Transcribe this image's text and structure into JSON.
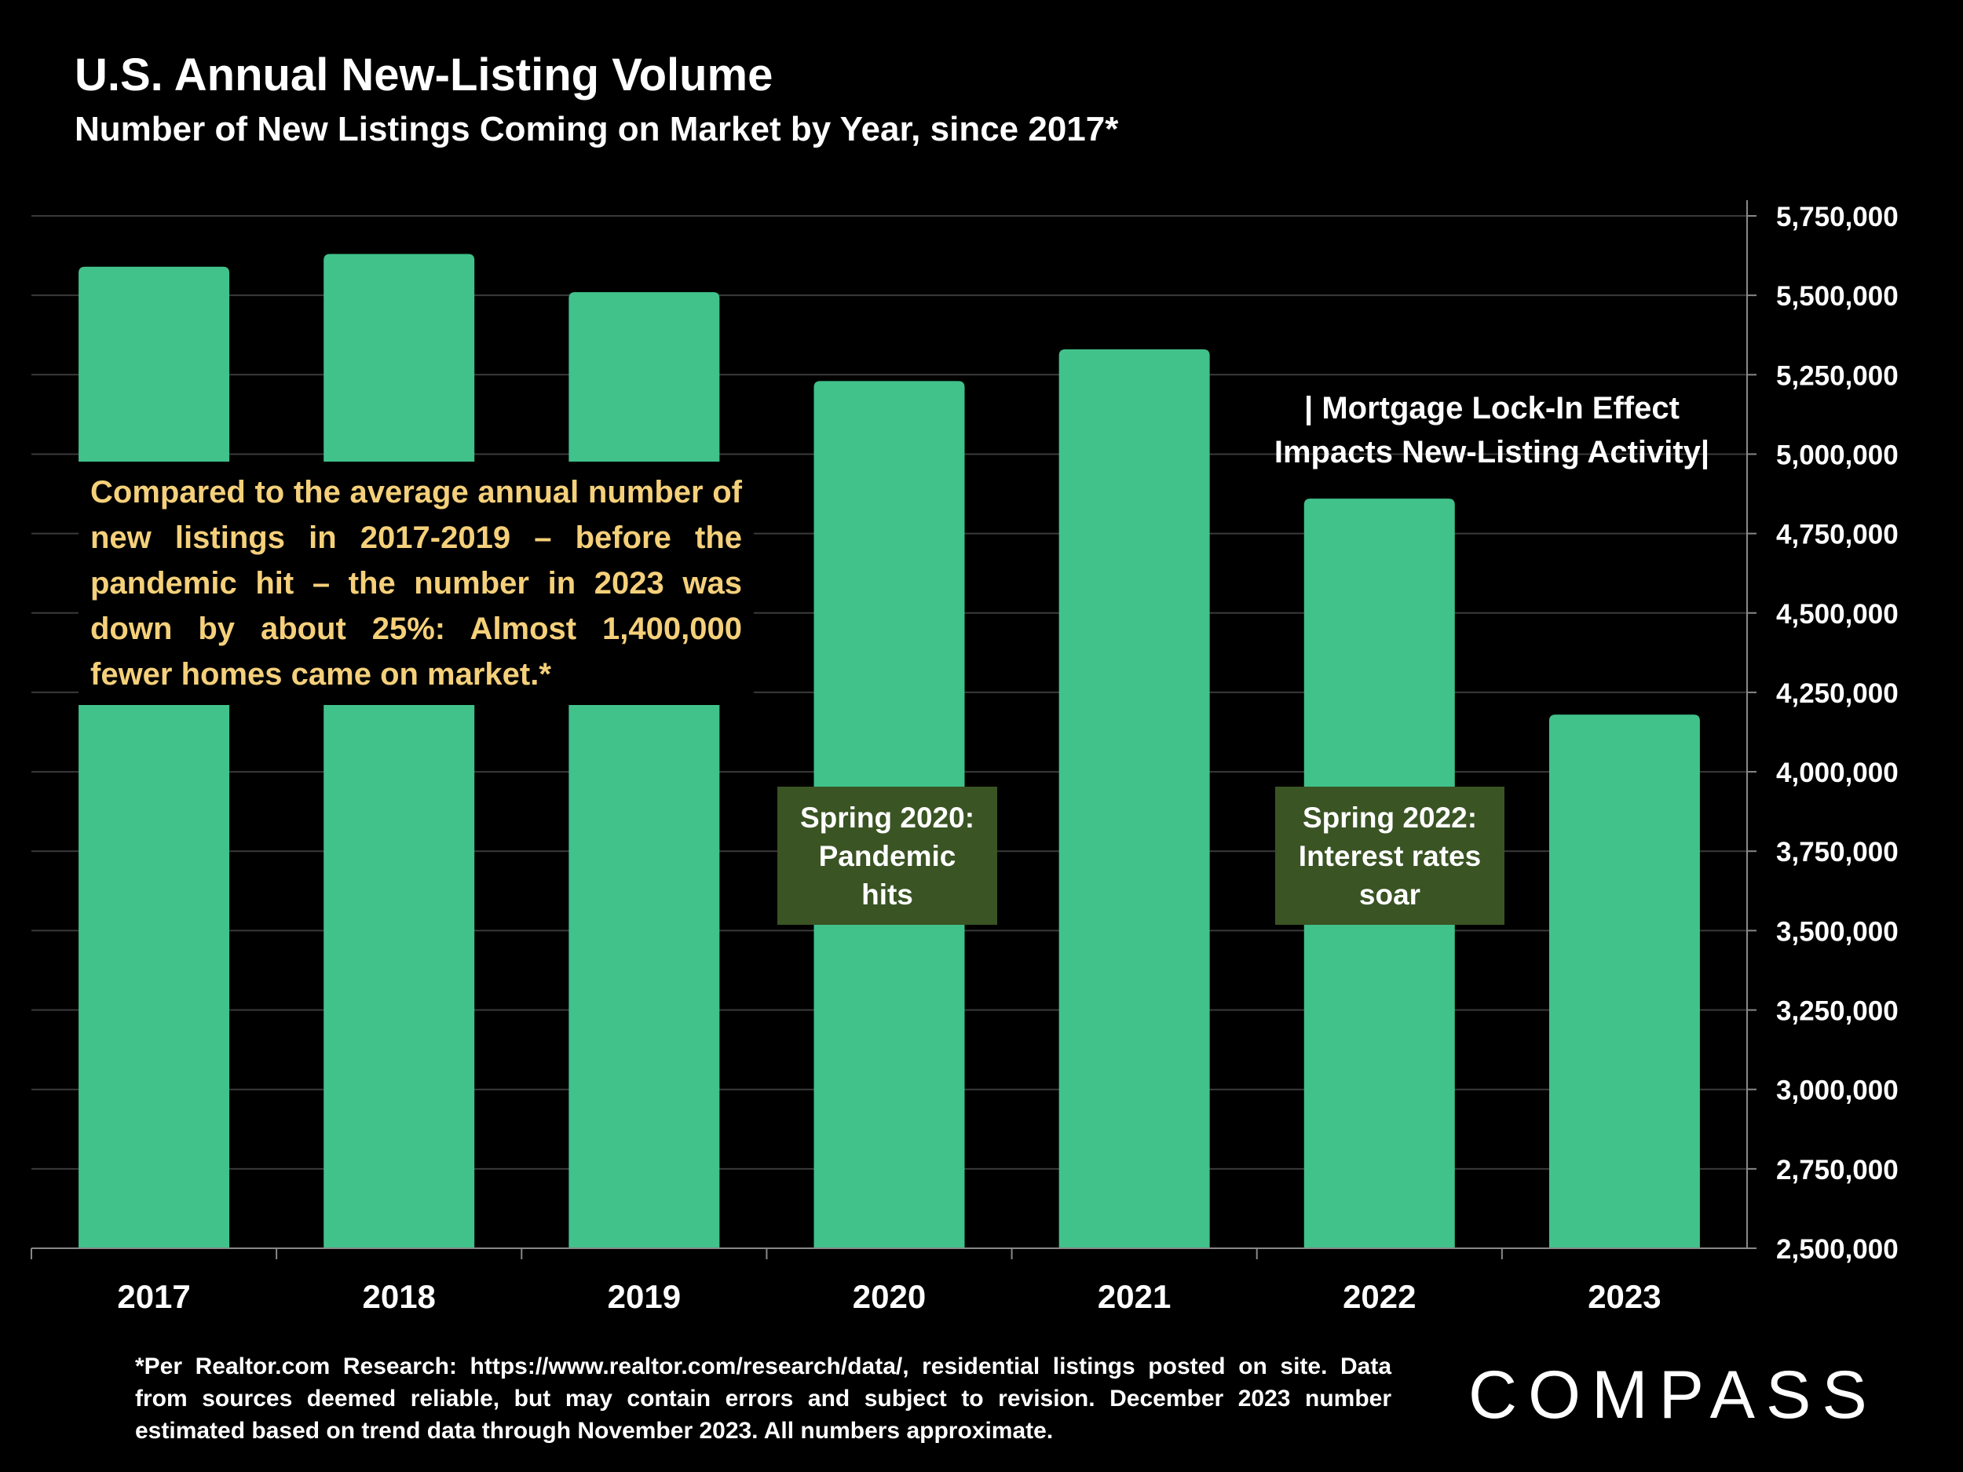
{
  "header": {
    "title": "U.S. Annual New-Listing Volume",
    "subtitle": "Number of New Listings Coming on Market by Year, since 2017*"
  },
  "chart_data": {
    "type": "bar",
    "categories": [
      "2017",
      "2018",
      "2019",
      "2020",
      "2021",
      "2022",
      "2023"
    ],
    "values": [
      5590000,
      5630000,
      5510000,
      5230000,
      5330000,
      4860000,
      4180000
    ],
    "ylim": [
      2500000,
      5750000
    ],
    "y_ticks": [
      "5,750,000",
      "5,500,000",
      "5,250,000",
      "5,000,000",
      "4,750,000",
      "4,500,000",
      "4,250,000",
      "4,000,000",
      "3,750,000",
      "3,500,000",
      "3,250,000",
      "3,000,000",
      "2,750,000",
      "2,500,000"
    ],
    "y_axis_position": "right",
    "grid": true,
    "bar_color": "#41c28b"
  },
  "annotations": {
    "callout": "Compared to the average annual number of new listings in 2017-2019 – before the pandemic hit – the number in 2023 was down by about 25%: Almost 1,400,000 fewer homes came on market.*",
    "event_2020_lines": [
      "Spring 2020:",
      "Pandemic",
      "hits"
    ],
    "event_2022_lines": [
      "Spring 2022:",
      "Interest rates",
      "soar"
    ],
    "lockin_lines": [
      "| Mortgage Lock-In Effect",
      "Impacts New-Listing Activity|"
    ]
  },
  "footer": {
    "footnote": "*Per Realtor.com Research:  https://www.realtor.com/research/data/, residential listings posted on site. Data from sources deemed reliable, but may contain errors and subject to revision. December 2023 number estimated based on trend data through November 2023. All numbers approximate.",
    "logo": "COMPASS"
  },
  "colors": {
    "background": "#000000",
    "bar": "#41c28b",
    "callout_text": "#f5d07a",
    "event_box": "#3a5424",
    "grid": "#3a3a3a"
  }
}
